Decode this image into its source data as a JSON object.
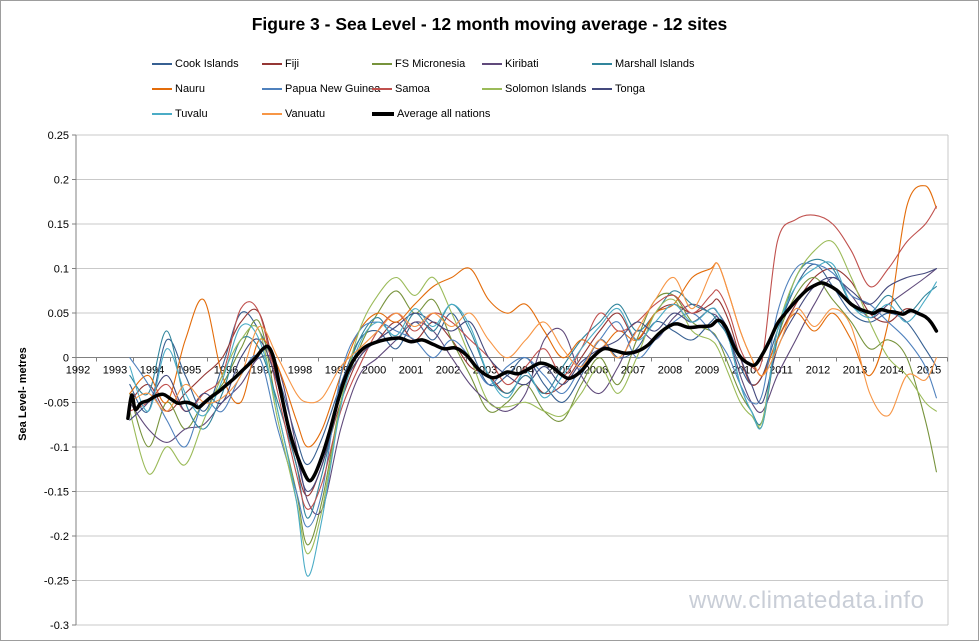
{
  "watermark": "www.climatedata.info",
  "chart_data": {
    "type": "line",
    "title": "Figure 3 - Sea Level - 12 month moving average - 12 sites",
    "xlabel": "",
    "ylabel": "Sea Level- metres",
    "ylim": [
      -0.3,
      0.25
    ],
    "ytick_step": 0.05,
    "grid": "horizontal",
    "legend_position": "top",
    "y_tick_labels": [
      "0.25",
      "0.2",
      "0.15",
      "0.1",
      "0.05",
      "0",
      "-0.05",
      "-0.1",
      "-0.15",
      "-0.2",
      "-0.25",
      "-0.3"
    ],
    "x_categories": [
      "1992",
      "1993",
      "1994",
      "1995",
      "1996",
      "1997",
      "1998",
      "1999",
      "2000",
      "2001",
      "2002",
      "2003",
      "2004",
      "2005",
      "2006",
      "2007",
      "2008",
      "2009",
      "2010",
      "2011",
      "2012",
      "2013",
      "2014",
      "2015"
    ],
    "x": [
      1993.4,
      1993.9,
      1994.4,
      1994.9,
      1995.4,
      1995.9,
      1996.4,
      1996.9,
      1997.4,
      1997.9,
      1998.2,
      1998.6,
      1999.1,
      1999.6,
      2000.1,
      2000.6,
      2001.1,
      2001.6,
      2002.1,
      2002.6,
      2003.1,
      2003.6,
      2004.1,
      2004.6,
      2005.1,
      2005.6,
      2006.1,
      2006.6,
      2007.1,
      2007.6,
      2008.1,
      2008.6,
      2009.1,
      2009.3,
      2009.6,
      2009.9,
      2010.2,
      2010.5,
      2010.9,
      2011.4,
      2011.9,
      2012.4,
      2012.9,
      2013.4,
      2013.9,
      2014.4,
      2014.9,
      2015.2
    ],
    "series": [
      {
        "name": "Cook Islands",
        "color": "#376092",
        "values": [
          -0.03,
          -0.06,
          0.02,
          -0.02,
          -0.06,
          -0.01,
          0.05,
          0.03,
          -0.02,
          -0.09,
          -0.12,
          -0.09,
          -0.03,
          0.02,
          0.03,
          0.01,
          0.04,
          0.02,
          0.05,
          0.01,
          -0.03,
          -0.02,
          0.0,
          -0.03,
          -0.05,
          -0.02,
          0.02,
          0.0,
          0.01,
          0.04,
          0.03,
          0.02,
          0.04,
          0.045,
          0.02,
          -0.01,
          -0.03,
          -0.02,
          0.03,
          0.08,
          0.105,
          0.08,
          0.05,
          0.04,
          0.05,
          0.04,
          0.01,
          -0.01
        ]
      },
      {
        "name": "Fiji",
        "color": "#953735",
        "values": [
          -0.05,
          -0.03,
          -0.06,
          -0.04,
          -0.02,
          0.0,
          0.04,
          0.05,
          -0.03,
          -0.12,
          -0.155,
          -0.12,
          -0.05,
          0.0,
          0.02,
          0.04,
          0.02,
          0.04,
          0.02,
          -0.01,
          -0.02,
          -0.04,
          -0.02,
          -0.04,
          -0.03,
          0.0,
          0.03,
          0.05,
          0.02,
          0.05,
          0.06,
          0.05,
          0.06,
          0.065,
          0.04,
          0.0,
          -0.03,
          -0.02,
          0.02,
          0.06,
          0.09,
          0.1,
          0.085,
          0.05,
          0.04,
          0.055,
          0.045,
          0.03
        ]
      },
      {
        "name": "FS Micronesia",
        "color": "#77933C",
        "values": [
          -0.04,
          -0.1,
          -0.05,
          -0.08,
          -0.05,
          -0.03,
          0.01,
          0.04,
          -0.06,
          -0.15,
          -0.21,
          -0.16,
          -0.05,
          0.01,
          0.05,
          0.075,
          0.05,
          0.065,
          0.02,
          -0.02,
          -0.06,
          -0.05,
          -0.03,
          -0.06,
          -0.07,
          -0.03,
          0.0,
          -0.03,
          0.02,
          0.065,
          0.07,
          0.04,
          0.03,
          0.02,
          -0.01,
          -0.04,
          -0.06,
          -0.075,
          0.02,
          0.07,
          0.09,
          0.065,
          0.04,
          0.01,
          0.02,
          0.0,
          -0.07,
          -0.128
        ]
      },
      {
        "name": "Kiribati",
        "color": "#604A7B",
        "values": [
          -0.05,
          -0.08,
          -0.095,
          -0.08,
          -0.075,
          -0.05,
          -0.03,
          0.0,
          -0.01,
          -0.1,
          -0.16,
          -0.17,
          -0.08,
          -0.02,
          0.0,
          0.02,
          0.04,
          0.03,
          0.0,
          -0.03,
          -0.05,
          -0.06,
          -0.04,
          0.02,
          0.03,
          -0.02,
          -0.04,
          -0.01,
          0.03,
          0.02,
          0.045,
          0.06,
          0.05,
          0.045,
          0.02,
          -0.02,
          -0.05,
          -0.06,
          -0.02,
          0.02,
          0.06,
          0.09,
          0.07,
          0.045,
          0.06,
          0.075,
          0.09,
          0.1
        ]
      },
      {
        "name": "Marshall Islands",
        "color": "#31859C",
        "values": [
          -0.02,
          -0.04,
          0.03,
          -0.05,
          -0.08,
          -0.04,
          0.02,
          0.01,
          -0.05,
          -0.12,
          -0.18,
          -0.13,
          -0.04,
          0.02,
          0.045,
          0.02,
          0.05,
          0.03,
          0.06,
          0.03,
          -0.02,
          -0.04,
          -0.02,
          -0.04,
          -0.01,
          0.02,
          0.04,
          0.06,
          0.03,
          0.05,
          0.075,
          0.06,
          0.05,
          0.04,
          0.02,
          -0.03,
          -0.06,
          -0.07,
          0.02,
          0.09,
          0.11,
          0.1,
          0.06,
          0.05,
          0.07,
          0.05,
          0.07,
          0.08
        ]
      },
      {
        "name": "Nauru",
        "color": "#E36C0A",
        "values": [
          -0.04,
          -0.02,
          -0.05,
          0.02,
          0.065,
          -0.02,
          -0.05,
          0.02,
          -0.01,
          -0.07,
          -0.1,
          -0.08,
          -0.02,
          0.03,
          0.05,
          0.04,
          0.06,
          0.08,
          0.09,
          0.1,
          0.065,
          0.05,
          0.06,
          0.03,
          0.0,
          0.02,
          0.01,
          0.03,
          0.02,
          0.05,
          0.06,
          0.09,
          0.1,
          0.105,
          0.07,
          0.03,
          0.0,
          -0.02,
          0.02,
          0.05,
          0.03,
          0.05,
          0.02,
          -0.02,
          0.04,
          0.17,
          0.193,
          0.168
        ]
      },
      {
        "name": "Papua New Guinea",
        "color": "#4F81BD",
        "values": [
          0.0,
          -0.03,
          -0.07,
          -0.1,
          -0.05,
          -0.06,
          -0.02,
          0.0,
          -0.08,
          -0.15,
          -0.19,
          -0.15,
          -0.02,
          0.03,
          0.04,
          0.03,
          0.02,
          0.0,
          0.02,
          0.0,
          -0.03,
          -0.01,
          0.0,
          -0.02,
          -0.04,
          -0.01,
          0.02,
          0.04,
          0.0,
          0.02,
          0.04,
          0.05,
          0.03,
          0.02,
          0.0,
          -0.03,
          -0.05,
          -0.04,
          0.05,
          0.1,
          0.105,
          0.095,
          0.07,
          0.06,
          0.04,
          0.02,
          -0.01,
          -0.045
        ]
      },
      {
        "name": "Samoa",
        "color": "#C0504D",
        "values": [
          -0.06,
          -0.05,
          -0.03,
          -0.06,
          -0.04,
          -0.02,
          0.055,
          0.05,
          -0.04,
          -0.13,
          -0.17,
          -0.14,
          -0.06,
          -0.01,
          0.03,
          0.05,
          0.03,
          0.05,
          0.04,
          0.02,
          0.0,
          -0.03,
          -0.01,
          0.01,
          -0.02,
          0.01,
          0.05,
          0.03,
          0.04,
          0.06,
          0.07,
          0.05,
          0.07,
          0.075,
          0.05,
          0.01,
          -0.01,
          0.0,
          0.13,
          0.155,
          0.16,
          0.15,
          0.12,
          0.08,
          0.1,
          0.13,
          0.15,
          0.17
        ]
      },
      {
        "name": "Solomon Islands",
        "color": "#9BBB59",
        "values": [
          -0.06,
          -0.13,
          -0.1,
          -0.12,
          -0.07,
          -0.02,
          0.02,
          0.03,
          -0.07,
          -0.16,
          -0.22,
          -0.17,
          -0.05,
          0.03,
          0.07,
          0.09,
          0.07,
          0.09,
          0.05,
          0.0,
          -0.05,
          -0.055,
          -0.05,
          -0.06,
          -0.065,
          -0.04,
          -0.01,
          -0.04,
          0.0,
          0.05,
          0.065,
          0.03,
          0.02,
          0.01,
          -0.02,
          -0.05,
          -0.065,
          -0.07,
          0.03,
          0.09,
          0.12,
          0.13,
          0.09,
          0.04,
          0.0,
          -0.02,
          -0.05,
          -0.06
        ]
      },
      {
        "name": "Tonga",
        "color": "#44497D",
        "values": [
          -0.07,
          -0.05,
          -0.02,
          -0.06,
          -0.04,
          -0.05,
          0.0,
          0.02,
          -0.03,
          -0.11,
          -0.15,
          -0.12,
          -0.04,
          0.0,
          0.02,
          0.035,
          0.05,
          0.04,
          0.03,
          0.04,
          0.0,
          -0.02,
          -0.03,
          -0.01,
          -0.03,
          -0.005,
          0.01,
          0.02,
          0.04,
          0.03,
          0.05,
          0.04,
          0.055,
          0.05,
          0.03,
          0.0,
          -0.03,
          -0.05,
          0.01,
          0.05,
          0.08,
          0.09,
          0.075,
          0.06,
          0.08,
          0.09,
          0.095,
          0.1
        ]
      },
      {
        "name": "Tuvalu",
        "color": "#4BACC6",
        "values": [
          -0.01,
          -0.06,
          0.01,
          -0.04,
          -0.065,
          -0.025,
          0.035,
          0.02,
          -0.06,
          -0.16,
          -0.245,
          -0.18,
          -0.055,
          0.015,
          0.04,
          0.025,
          0.055,
          0.035,
          0.06,
          0.035,
          -0.02,
          -0.045,
          -0.015,
          -0.045,
          -0.02,
          0.01,
          0.035,
          0.055,
          0.02,
          0.04,
          0.06,
          0.04,
          0.055,
          0.05,
          0.02,
          -0.03,
          -0.06,
          -0.075,
          0.03,
          0.08,
          0.1,
          0.105,
          0.06,
          0.045,
          0.06,
          0.04,
          0.065,
          0.085
        ]
      },
      {
        "name": "Vanuatu",
        "color": "#F79646",
        "values": [
          -0.05,
          -0.04,
          -0.06,
          -0.03,
          -0.05,
          -0.045,
          -0.02,
          0.035,
          0.0,
          -0.04,
          -0.05,
          -0.045,
          -0.01,
          0.01,
          0.03,
          0.05,
          0.035,
          0.05,
          0.035,
          0.05,
          0.02,
          0.0,
          0.02,
          0.04,
          0.01,
          -0.01,
          0.02,
          0.0,
          0.03,
          0.065,
          0.09,
          0.055,
          0.095,
          0.105,
          0.07,
          0.03,
          0.0,
          -0.02,
          0.01,
          0.055,
          0.035,
          0.055,
          0.035,
          -0.04,
          -0.065,
          -0.02,
          -0.025,
          0.0
        ]
      },
      {
        "name": "Average all nations",
        "color": "#000000",
        "thick": true,
        "x": [
          1993.35,
          1993.45,
          1993.55,
          1993.7,
          1993.9,
          1994.1,
          1994.3,
          1994.5,
          1994.7,
          1994.9,
          1995.1,
          1995.25,
          1995.4,
          1995.6,
          1995.8,
          1996.0,
          1996.2,
          1996.4,
          1996.6,
          1996.8,
          1997.0,
          1997.15,
          1997.3,
          1997.5,
          1997.7,
          1997.9,
          1998.1,
          1998.25,
          1998.4,
          1998.6,
          1998.8,
          1999.0,
          1999.2,
          1999.4,
          1999.6,
          1999.8,
          2000.1,
          2000.4,
          2000.7,
          2001.0,
          2001.3,
          2001.6,
          2001.9,
          2002.2,
          2002.5,
          2002.8,
          2003.1,
          2003.3,
          2003.6,
          2003.9,
          2004.2,
          2004.5,
          2004.8,
          2005.1,
          2005.3,
          2005.6,
          2005.9,
          2006.2,
          2006.5,
          2006.8,
          2007.1,
          2007.4,
          2007.7,
          2008.0,
          2008.2,
          2008.5,
          2008.8,
          2009.1,
          2009.3,
          2009.5,
          2009.7,
          2009.9,
          2010.1,
          2010.3,
          2010.5,
          2010.7,
          2010.9,
          2011.1,
          2011.3,
          2011.5,
          2011.7,
          2011.9,
          2012.1,
          2012.3,
          2012.5,
          2012.7,
          2012.9,
          2013.1,
          2013.3,
          2013.5,
          2013.7,
          2013.9,
          2014.1,
          2014.3,
          2014.5,
          2014.7,
          2014.9,
          2015.05,
          2015.2
        ],
        "values": [
          -0.068,
          -0.042,
          -0.058,
          -0.051,
          -0.048,
          -0.043,
          -0.041,
          -0.046,
          -0.051,
          -0.05,
          -0.052,
          -0.056,
          -0.051,
          -0.044,
          -0.038,
          -0.031,
          -0.024,
          -0.016,
          -0.008,
          0.0,
          0.01,
          0.012,
          -0.002,
          -0.042,
          -0.08,
          -0.107,
          -0.128,
          -0.138,
          -0.131,
          -0.11,
          -0.083,
          -0.052,
          -0.025,
          -0.006,
          0.006,
          0.013,
          0.018,
          0.021,
          0.022,
          0.018,
          0.02,
          0.015,
          0.01,
          0.011,
          0.003,
          -0.012,
          -0.021,
          -0.022,
          -0.016,
          -0.018,
          -0.012,
          -0.006,
          -0.01,
          -0.02,
          -0.023,
          -0.015,
          0.0,
          0.01,
          0.008,
          0.005,
          0.007,
          0.014,
          0.027,
          0.036,
          0.038,
          0.034,
          0.035,
          0.036,
          0.042,
          0.035,
          0.015,
          0.001,
          -0.006,
          -0.008,
          0.004,
          0.02,
          0.038,
          0.049,
          0.059,
          0.068,
          0.076,
          0.081,
          0.084,
          0.081,
          0.076,
          0.068,
          0.06,
          0.055,
          0.052,
          0.05,
          0.054,
          0.052,
          0.051,
          0.049,
          0.053,
          0.05,
          0.046,
          0.04,
          0.03
        ]
      }
    ]
  }
}
